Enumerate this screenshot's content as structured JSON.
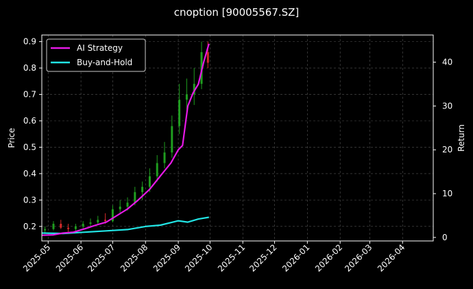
{
  "chart_data": {
    "type": "line",
    "title": "cnoption [90005567.SZ]",
    "xlabel": "",
    "ylabel_left": "Price",
    "ylabel_right": "Return",
    "background": "#000000",
    "grid": true,
    "legend_position": "top-left",
    "x_ticks": [
      "2025-05",
      "2025-06",
      "2025-07",
      "2025-08",
      "2025-09",
      "2025-10",
      "2025-11",
      "2025-12",
      "2026-01",
      "2026-02",
      "2026-03",
      "2026-04"
    ],
    "xlim": [
      "2025-04-25",
      "2026-04-30"
    ],
    "ylim_left": [
      0.145,
      0.925
    ],
    "y_ticks_left": [
      0.2,
      0.3,
      0.4,
      0.5,
      0.6,
      0.7,
      0.8,
      0.9
    ],
    "ylim_right": [
      -0.8,
      46.2
    ],
    "y_ticks_right": [
      0,
      10,
      20,
      30,
      40
    ],
    "candle_up_color": "#1f9d1f",
    "candle_down_color": "#d42a2a",
    "candles": [
      {
        "date": "2025-04-28",
        "open": 0.185,
        "high": 0.2,
        "low": 0.175,
        "close": 0.19
      },
      {
        "date": "2025-05-06",
        "open": 0.19,
        "high": 0.22,
        "low": 0.185,
        "close": 0.21
      },
      {
        "date": "2025-05-13",
        "open": 0.21,
        "high": 0.225,
        "low": 0.19,
        "close": 0.195
      },
      {
        "date": "2025-05-20",
        "open": 0.195,
        "high": 0.21,
        "low": 0.18,
        "close": 0.19
      },
      {
        "date": "2025-05-27",
        "open": 0.19,
        "high": 0.21,
        "low": 0.18,
        "close": 0.2
      },
      {
        "date": "2025-06-03",
        "open": 0.2,
        "high": 0.22,
        "low": 0.19,
        "close": 0.21
      },
      {
        "date": "2025-06-10",
        "open": 0.21,
        "high": 0.23,
        "low": 0.2,
        "close": 0.215
      },
      {
        "date": "2025-06-17",
        "open": 0.215,
        "high": 0.24,
        "low": 0.205,
        "close": 0.225
      },
      {
        "date": "2025-06-24",
        "open": 0.225,
        "high": 0.25,
        "low": 0.21,
        "close": 0.22
      },
      {
        "date": "2025-07-01",
        "open": 0.22,
        "high": 0.28,
        "low": 0.215,
        "close": 0.265
      },
      {
        "date": "2025-07-08",
        "open": 0.265,
        "high": 0.3,
        "low": 0.25,
        "close": 0.275
      },
      {
        "date": "2025-07-15",
        "open": 0.275,
        "high": 0.31,
        "low": 0.26,
        "close": 0.29
      },
      {
        "date": "2025-07-22",
        "open": 0.29,
        "high": 0.35,
        "low": 0.28,
        "close": 0.33
      },
      {
        "date": "2025-07-29",
        "open": 0.33,
        "high": 0.37,
        "low": 0.3,
        "close": 0.35
      },
      {
        "date": "2025-08-05",
        "open": 0.35,
        "high": 0.42,
        "low": 0.33,
        "close": 0.39
      },
      {
        "date": "2025-08-12",
        "open": 0.39,
        "high": 0.47,
        "low": 0.37,
        "close": 0.44
      },
      {
        "date": "2025-08-19",
        "open": 0.44,
        "high": 0.52,
        "low": 0.42,
        "close": 0.48
      },
      {
        "date": "2025-08-26",
        "open": 0.48,
        "high": 0.62,
        "low": 0.46,
        "close": 0.58
      },
      {
        "date": "2025-09-02",
        "open": 0.58,
        "high": 0.74,
        "low": 0.55,
        "close": 0.68
      },
      {
        "date": "2025-09-09",
        "open": 0.68,
        "high": 0.76,
        "low": 0.62,
        "close": 0.7
      },
      {
        "date": "2025-09-16",
        "open": 0.7,
        "high": 0.8,
        "low": 0.66,
        "close": 0.74
      },
      {
        "date": "2025-09-23",
        "open": 0.74,
        "high": 0.9,
        "low": 0.72,
        "close": 0.86
      },
      {
        "date": "2025-09-29",
        "open": 0.86,
        "high": 0.9,
        "low": 0.8,
        "close": 0.82
      }
    ],
    "series": [
      {
        "name": "AI Strategy",
        "color": "#e619e6",
        "axis": "right",
        "x": [
          "2025-04-25",
          "2025-05-06",
          "2025-05-15",
          "2025-05-25",
          "2025-06-05",
          "2025-06-15",
          "2025-06-25",
          "2025-07-05",
          "2025-07-15",
          "2025-07-25",
          "2025-08-05",
          "2025-08-15",
          "2025-08-25",
          "2025-09-01",
          "2025-09-05",
          "2025-09-10",
          "2025-09-15",
          "2025-09-20",
          "2025-09-25",
          "2025-09-30"
        ],
        "values": [
          0.5,
          0.6,
          1.0,
          1.2,
          2.0,
          2.8,
          3.5,
          5.0,
          6.5,
          8.5,
          11.0,
          14.0,
          17.0,
          20.0,
          21.0,
          30.0,
          33.0,
          35.0,
          40.0,
          44.2
        ]
      },
      {
        "name": "Buy-and-Hold",
        "color": "#22e5e5",
        "axis": "right",
        "x": [
          "2025-04-25",
          "2025-05-15",
          "2025-06-05",
          "2025-06-25",
          "2025-07-15",
          "2025-08-01",
          "2025-08-15",
          "2025-09-01",
          "2025-09-10",
          "2025-09-20",
          "2025-09-30"
        ],
        "values": [
          1.0,
          0.9,
          1.2,
          1.5,
          1.8,
          2.5,
          2.8,
          3.8,
          3.5,
          4.2,
          4.6
        ]
      }
    ]
  }
}
